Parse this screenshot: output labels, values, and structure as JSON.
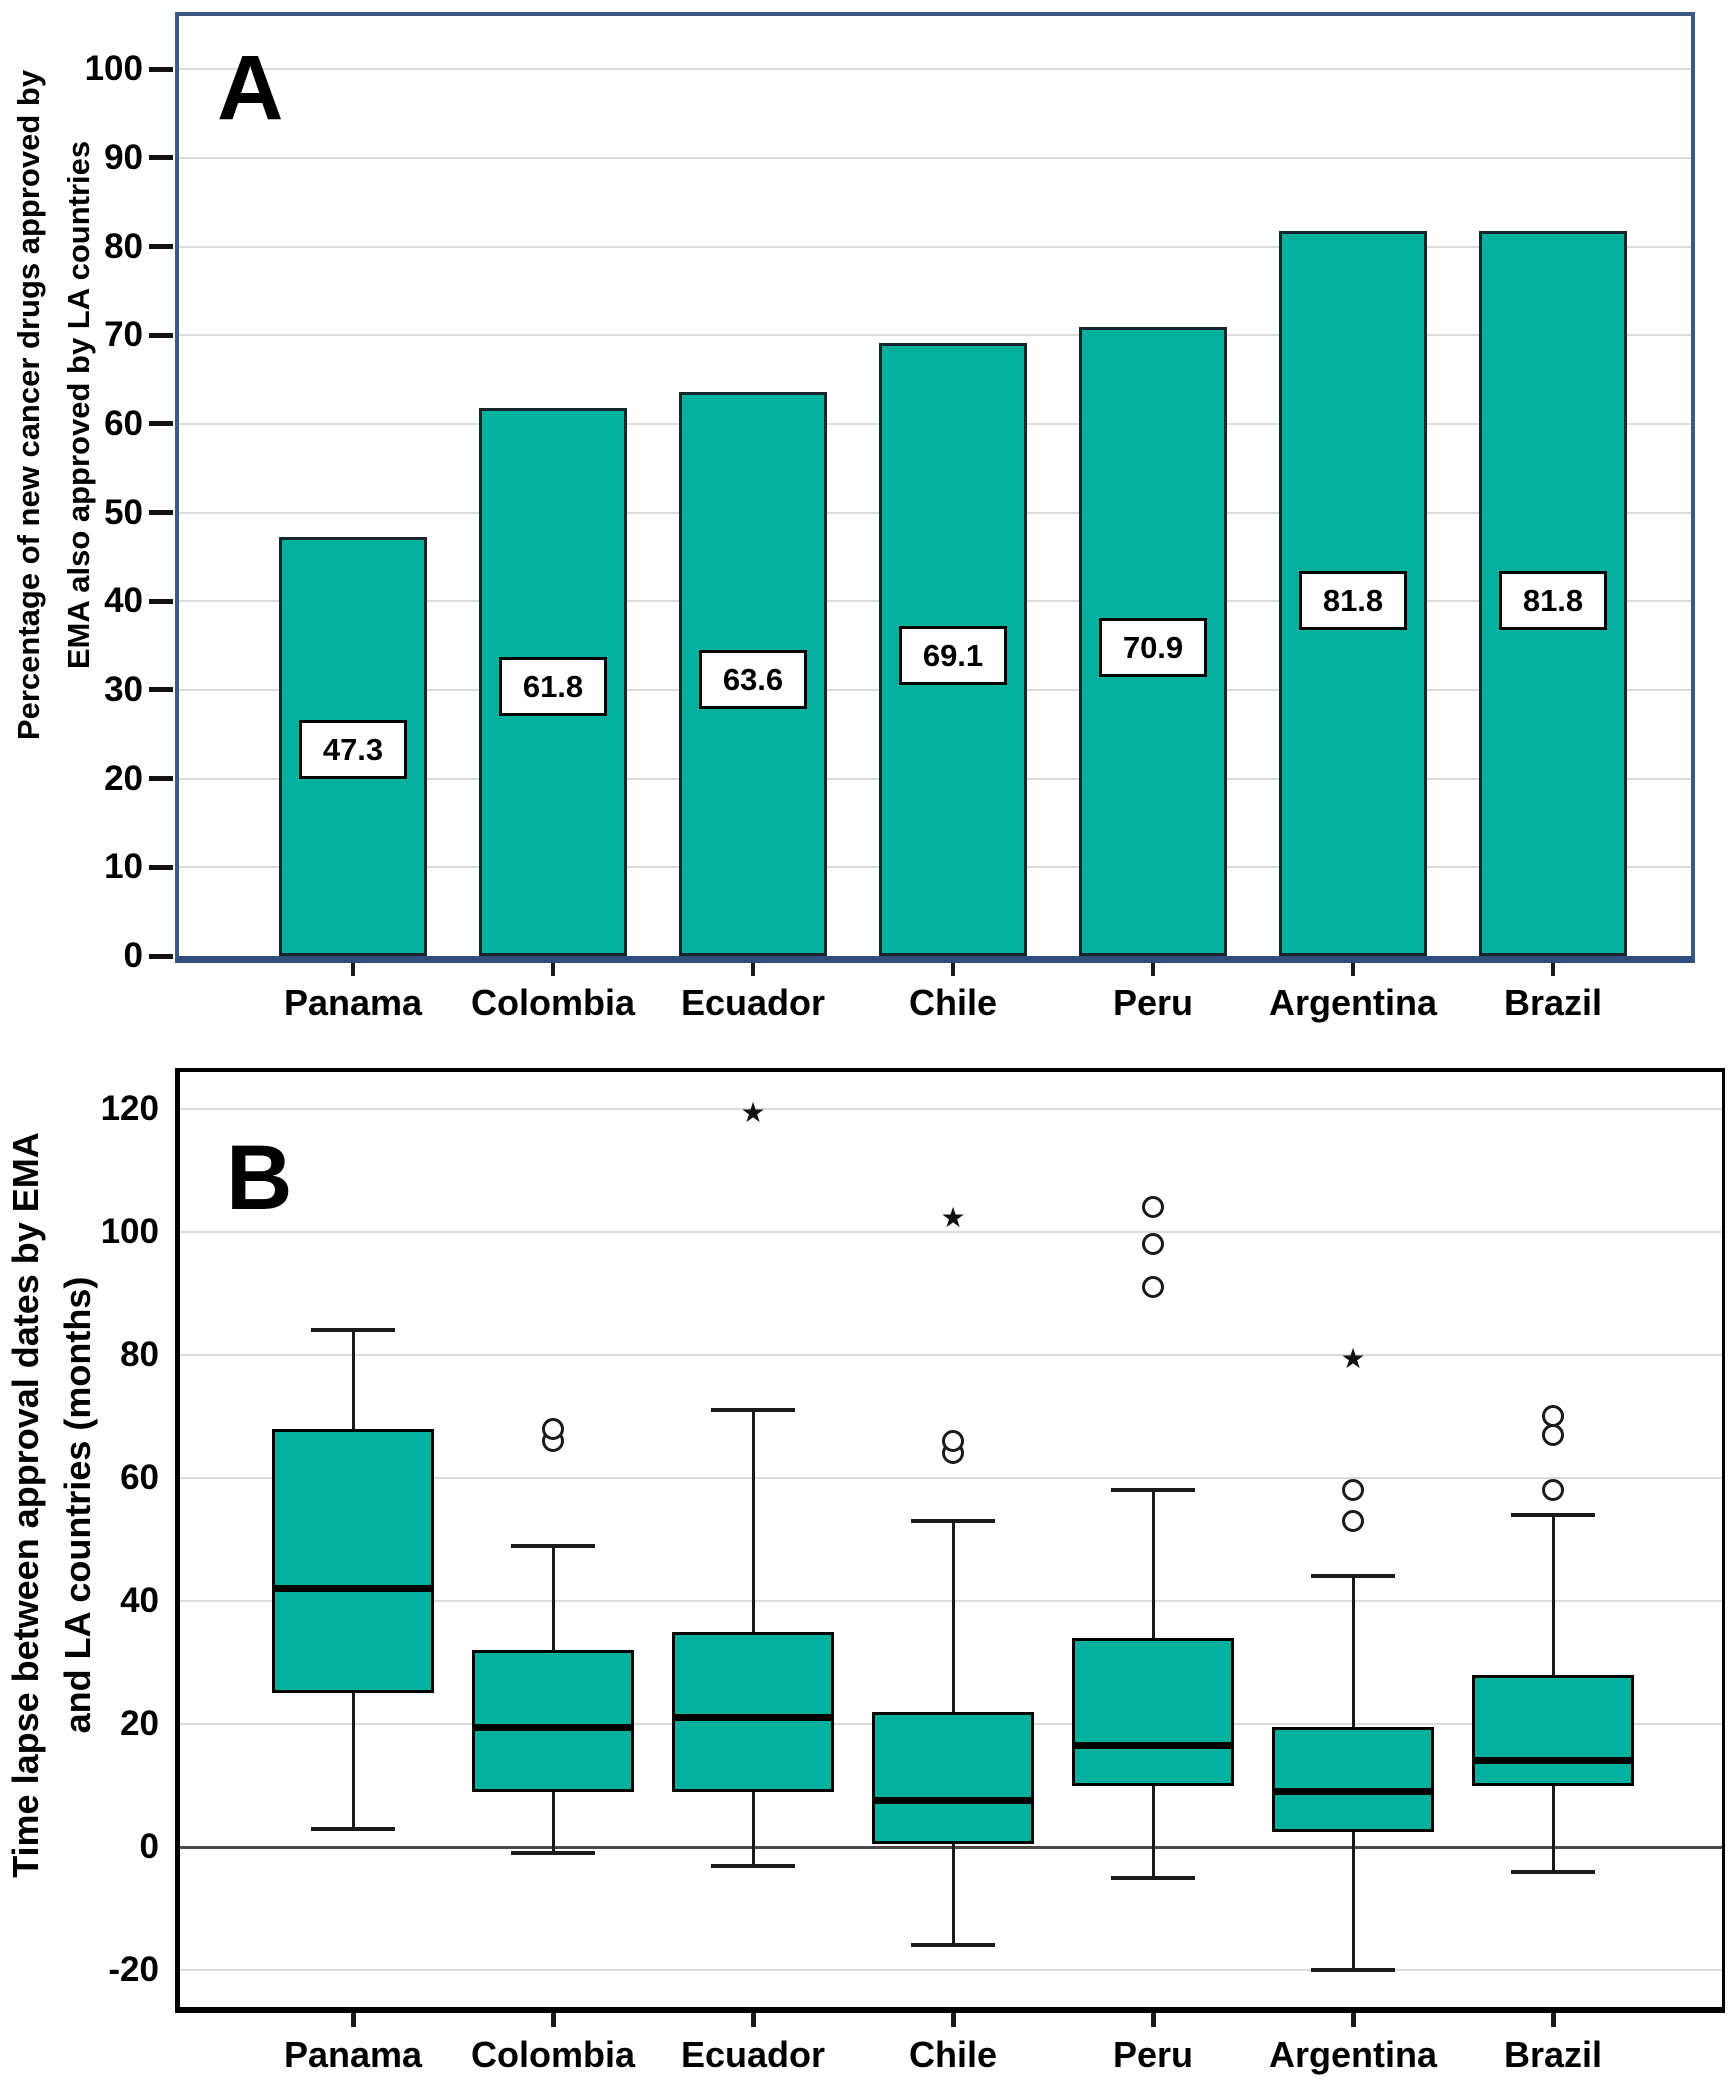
{
  "figure": {
    "background": "#FFFFFF",
    "panel_a": {
      "letter": "A",
      "y_axis_title_line1": "Percentage of new cancer drugs approved by",
      "y_axis_title_line2": "EMA also approved by LA countries"
    },
    "panel_b": {
      "letter": "B",
      "y_axis_title_line1": "Time lapse between approval dates by EMA",
      "y_axis_title_line2": "and LA countries (months)"
    },
    "colors": {
      "fill_teal": "#00B29E",
      "bar_outline": "#16262B",
      "box_outline": "#000000",
      "panel_a_border": "#3C5A88",
      "panel_a_axis": "#2E4C7C",
      "panel_b_border": "#000000",
      "gridline": "#DBDBDB",
      "zero_line": "#4A4A4A",
      "text": "#000000"
    }
  },
  "chart_data": [
    {
      "type": "bar",
      "panel": "A",
      "title": "",
      "categories": [
        "Panama",
        "Colombia",
        "Ecuador",
        "Chile",
        "Peru",
        "Argentina",
        "Brazil"
      ],
      "values": [
        47.3,
        61.8,
        63.6,
        69.1,
        70.9,
        81.8,
        81.8
      ],
      "value_labels": [
        "47.3",
        "61.8",
        "63.6",
        "69.1",
        "70.9",
        "81.8",
        "81.8"
      ],
      "xlabel": "",
      "ylabel": "Percentage of new cancer drugs approved by EMA also approved by LA countries",
      "ylim": [
        0,
        106
      ],
      "yticks": [
        0,
        10,
        20,
        30,
        40,
        50,
        60,
        70,
        80,
        90,
        100
      ],
      "grid": true,
      "legend": "none"
    },
    {
      "type": "box",
      "panel": "B",
      "title": "",
      "categories": [
        "Panama",
        "Colombia",
        "Ecuador",
        "Chile",
        "Peru",
        "Argentina",
        "Brazil"
      ],
      "series": [
        {
          "name": "Panama",
          "whisker_low": 3,
          "q1": 25,
          "median": 42,
          "q3": 68,
          "whisker_high": 84,
          "outliers": [],
          "extremes": []
        },
        {
          "name": "Colombia",
          "whisker_low": -1,
          "q1": 9,
          "median": 19.5,
          "q3": 32,
          "whisker_high": 49,
          "outliers": [
            66,
            68
          ],
          "extremes": []
        },
        {
          "name": "Ecuador",
          "whisker_low": -3,
          "q1": 9,
          "median": 21,
          "q3": 35,
          "whisker_high": 71,
          "outliers": [],
          "extremes": [
            119
          ]
        },
        {
          "name": "Chile",
          "whisker_low": -16,
          "q1": 0.5,
          "median": 7.5,
          "q3": 22,
          "whisker_high": 53,
          "outliers": [
            64,
            66
          ],
          "extremes": [
            102
          ]
        },
        {
          "name": "Peru",
          "whisker_low": -5,
          "q1": 10,
          "median": 16.5,
          "q3": 34,
          "whisker_high": 58,
          "outliers": [
            91,
            98,
            104
          ],
          "extremes": []
        },
        {
          "name": "Argentina",
          "whisker_low": -20,
          "q1": 2.5,
          "median": 9,
          "q3": 19.5,
          "whisker_high": 44,
          "outliers": [
            53,
            58
          ],
          "extremes": [
            79
          ]
        },
        {
          "name": "Brazil",
          "whisker_low": -4,
          "q1": 10,
          "median": 14,
          "q3": 28,
          "whisker_high": 54,
          "outliers": [
            58,
            67,
            70
          ],
          "extremes": []
        }
      ],
      "xlabel": "",
      "ylabel": "Time lapse between approval dates by EMA and LA countries (months)",
      "ylim": [
        -26,
        126
      ],
      "yticks": [
        -20,
        0,
        20,
        40,
        60,
        80,
        100,
        120
      ],
      "grid": true,
      "legend": "none",
      "outlier_marker": "circle",
      "extreme_marker": "star"
    }
  ]
}
